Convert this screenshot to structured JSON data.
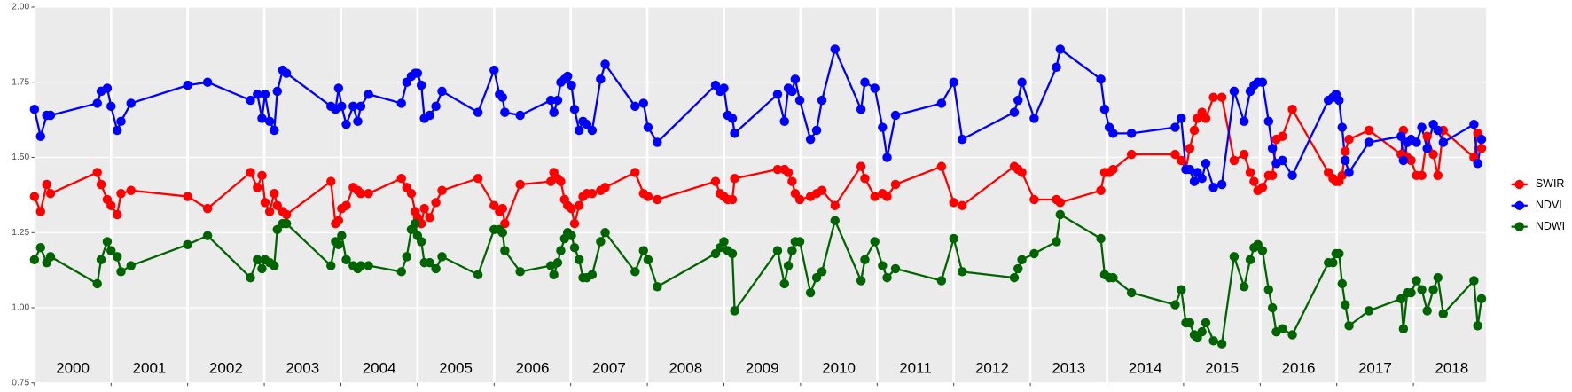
{
  "chart_data": {
    "type": "line",
    "x": [
      2000.0,
      2000.08,
      2000.16,
      2000.21,
      2000.82,
      2000.87,
      2000.95,
      2001.0,
      2001.08,
      2001.13,
      2001.26,
      2002.0,
      2002.26,
      2002.82,
      2002.91,
      2002.97,
      2003.01,
      2003.07,
      2003.13,
      2003.17,
      2003.24,
      2003.29,
      2003.87,
      2003.93,
      2003.97,
      2004.01,
      2004.07,
      2004.16,
      2004.22,
      2004.26,
      2004.36,
      2004.79,
      2004.86,
      2004.92,
      2004.97,
      2005.0,
      2005.05,
      2005.09,
      2005.16,
      2005.24,
      2005.32,
      2005.79,
      2006.0,
      2006.07,
      2006.11,
      2006.14,
      2006.34,
      2006.74,
      2006.78,
      2006.83,
      2006.87,
      2006.92,
      2006.96,
      2007.01,
      2007.05,
      2007.11,
      2007.16,
      2007.21,
      2007.28,
      2007.39,
      2007.45,
      2007.84,
      2007.95,
      2008.01,
      2008.13,
      2008.89,
      2008.95,
      2009.0,
      2009.05,
      2009.11,
      2009.14,
      2009.7,
      2009.79,
      2009.84,
      2009.89,
      2009.93,
      2009.99,
      2010.13,
      2010.21,
      2010.28,
      2010.45,
      2010.79,
      2010.84,
      2010.97,
      2011.07,
      2011.13,
      2011.24,
      2011.84,
      2012.0,
      2012.11,
      2012.79,
      2012.84,
      2012.89,
      2013.05,
      2013.34,
      2013.39,
      2013.92,
      2013.97,
      2014.03,
      2014.08,
      2014.32,
      2014.89,
      2014.97,
      2015.03,
      2015.08,
      2015.14,
      2015.18,
      2015.24,
      2015.29,
      2015.39,
      2015.5,
      2015.66,
      2015.79,
      2015.87,
      2015.92,
      2015.97,
      2016.03,
      2016.11,
      2016.16,
      2016.21,
      2016.29,
      2016.42,
      2016.89,
      2016.95,
      2016.99,
      2017.03,
      2017.07,
      2017.11,
      2017.16,
      2017.42,
      2017.84,
      2017.87,
      2017.92,
      2017.97,
      2018.04,
      2018.11,
      2018.18,
      2018.26,
      2018.32,
      2018.39,
      2018.79,
      2018.84,
      2018.89
    ],
    "series": [
      {
        "name": "SWIR",
        "color": "#ff0000",
        "values": [
          1.37,
          1.32,
          1.41,
          1.38,
          1.45,
          1.41,
          1.36,
          1.34,
          1.31,
          1.38,
          1.39,
          1.37,
          1.33,
          1.45,
          1.4,
          1.44,
          1.35,
          1.32,
          1.38,
          1.34,
          1.32,
          1.31,
          1.42,
          1.28,
          1.29,
          1.33,
          1.34,
          1.4,
          1.39,
          1.38,
          1.38,
          1.43,
          1.4,
          1.38,
          1.32,
          1.3,
          1.28,
          1.33,
          1.3,
          1.35,
          1.39,
          1.43,
          1.34,
          1.32,
          1.33,
          1.28,
          1.41,
          1.42,
          1.45,
          1.43,
          1.42,
          1.36,
          1.34,
          1.33,
          1.28,
          1.34,
          1.37,
          1.38,
          1.38,
          1.39,
          1.4,
          1.45,
          1.38,
          1.37,
          1.36,
          1.42,
          1.38,
          1.37,
          1.36,
          1.36,
          1.43,
          1.46,
          1.46,
          1.45,
          1.42,
          1.38,
          1.36,
          1.37,
          1.38,
          1.39,
          1.34,
          1.47,
          1.43,
          1.37,
          1.38,
          1.37,
          1.41,
          1.47,
          1.35,
          1.34,
          1.47,
          1.46,
          1.45,
          1.36,
          1.36,
          1.35,
          1.39,
          1.45,
          1.45,
          1.46,
          1.51,
          1.51,
          1.49,
          1.46,
          1.53,
          1.59,
          1.63,
          1.65,
          1.63,
          1.7,
          1.7,
          1.49,
          1.51,
          1.45,
          1.42,
          1.39,
          1.4,
          1.44,
          1.44,
          1.56,
          1.57,
          1.66,
          1.45,
          1.43,
          1.42,
          1.42,
          1.44,
          1.52,
          1.56,
          1.59,
          1.51,
          1.59,
          1.5,
          1.49,
          1.44,
          1.44,
          1.57,
          1.51,
          1.44,
          1.59,
          1.5,
          1.58,
          1.53
        ]
      },
      {
        "name": "NDVI",
        "color": "#0000ff",
        "values": [
          1.66,
          1.57,
          1.64,
          1.64,
          1.68,
          1.72,
          1.73,
          1.67,
          1.59,
          1.62,
          1.68,
          1.74,
          1.75,
          1.69,
          1.71,
          1.63,
          1.71,
          1.62,
          1.59,
          1.72,
          1.79,
          1.78,
          1.67,
          1.66,
          1.73,
          1.67,
          1.61,
          1.67,
          1.62,
          1.67,
          1.71,
          1.68,
          1.75,
          1.77,
          1.78,
          1.78,
          1.74,
          1.63,
          1.64,
          1.67,
          1.72,
          1.65,
          1.79,
          1.71,
          1.7,
          1.65,
          1.64,
          1.69,
          1.65,
          1.69,
          1.75,
          1.76,
          1.77,
          1.74,
          1.66,
          1.59,
          1.62,
          1.61,
          1.59,
          1.76,
          1.81,
          1.67,
          1.68,
          1.6,
          1.55,
          1.74,
          1.72,
          1.73,
          1.64,
          1.63,
          1.58,
          1.71,
          1.62,
          1.73,
          1.72,
          1.76,
          1.69,
          1.56,
          1.59,
          1.69,
          1.86,
          1.66,
          1.75,
          1.73,
          1.6,
          1.5,
          1.64,
          1.68,
          1.75,
          1.56,
          1.65,
          1.69,
          1.75,
          1.63,
          1.8,
          1.86,
          1.76,
          1.66,
          1.6,
          1.58,
          1.58,
          1.6,
          1.63,
          1.46,
          1.46,
          1.42,
          1.45,
          1.43,
          1.48,
          1.4,
          1.41,
          1.72,
          1.62,
          1.72,
          1.74,
          1.75,
          1.75,
          1.62,
          1.53,
          1.48,
          1.49,
          1.44,
          1.69,
          1.7,
          1.71,
          1.69,
          1.6,
          1.49,
          1.45,
          1.55,
          1.57,
          1.49,
          1.55,
          1.56,
          1.55,
          1.6,
          1.53,
          1.61,
          1.59,
          1.55,
          1.61,
          1.48,
          1.56
        ]
      },
      {
        "name": "NDWI",
        "color": "#006400",
        "values": [
          1.16,
          1.2,
          1.15,
          1.17,
          1.08,
          1.16,
          1.22,
          1.19,
          1.17,
          1.12,
          1.14,
          1.21,
          1.24,
          1.1,
          1.16,
          1.13,
          1.16,
          1.15,
          1.14,
          1.26,
          1.28,
          1.28,
          1.14,
          1.22,
          1.21,
          1.24,
          1.16,
          1.14,
          1.13,
          1.14,
          1.14,
          1.12,
          1.17,
          1.26,
          1.28,
          1.24,
          1.22,
          1.15,
          1.15,
          1.13,
          1.17,
          1.11,
          1.26,
          1.26,
          1.25,
          1.19,
          1.12,
          1.14,
          1.11,
          1.15,
          1.19,
          1.23,
          1.25,
          1.24,
          1.2,
          1.16,
          1.1,
          1.1,
          1.11,
          1.22,
          1.25,
          1.12,
          1.19,
          1.16,
          1.07,
          1.18,
          1.2,
          1.22,
          1.19,
          1.18,
          0.99,
          1.19,
          1.08,
          1.14,
          1.19,
          1.22,
          1.22,
          1.05,
          1.1,
          1.12,
          1.29,
          1.09,
          1.16,
          1.22,
          1.14,
          1.1,
          1.13,
          1.09,
          1.23,
          1.12,
          1.1,
          1.13,
          1.16,
          1.18,
          1.22,
          1.31,
          1.23,
          1.11,
          1.1,
          1.1,
          1.05,
          1.01,
          1.06,
          0.95,
          0.95,
          0.91,
          0.9,
          0.92,
          0.95,
          0.89,
          0.88,
          1.17,
          1.07,
          1.16,
          1.2,
          1.21,
          1.19,
          1.06,
          1.0,
          0.92,
          0.93,
          0.91,
          1.15,
          1.15,
          1.18,
          1.18,
          1.08,
          1.01,
          0.94,
          0.99,
          1.03,
          0.93,
          1.05,
          1.05,
          1.09,
          1.06,
          0.99,
          1.06,
          1.1,
          0.98,
          1.09,
          0.94,
          1.03
        ]
      }
    ],
    "xlim": [
      2000,
      2018.95
    ],
    "xticks": [
      2000,
      2001,
      2002,
      2003,
      2004,
      2005,
      2006,
      2007,
      2008,
      2009,
      2010,
      2011,
      2012,
      2013,
      2014,
      2015,
      2016,
      2017,
      2018
    ],
    "ylim": [
      0.75,
      2.0
    ],
    "yticks": [
      {
        "value": 0.75,
        "label": "0.75"
      },
      {
        "value": 1.0,
        "label": "1.00"
      },
      {
        "value": 1.25,
        "label": "1.25"
      },
      {
        "value": 1.5,
        "label": "1.50"
      },
      {
        "value": 1.75,
        "label": "1.75"
      },
      {
        "value": 2.0,
        "label": "2.00"
      }
    ],
    "grid": true
  }
}
